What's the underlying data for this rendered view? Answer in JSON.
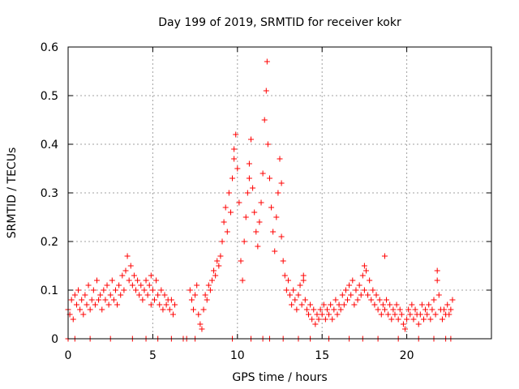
{
  "chart_data": {
    "type": "scatter",
    "title": "Day 199 of 2019, SRMTID for receiver kokr",
    "xlabel": "GPS time / hours",
    "ylabel": "SRMTID / TECUs",
    "xlim": [
      0,
      25
    ],
    "ylim": [
      0,
      0.6
    ],
    "xticks": [
      0,
      5,
      10,
      15,
      20
    ],
    "yticks": [
      0,
      0.1,
      0.2,
      0.3,
      0.4,
      0.5,
      0.6
    ],
    "xtick_labels": [
      "0",
      "5",
      "10",
      "15",
      "20"
    ],
    "ytick_labels": [
      "0",
      "0.1",
      "0.2",
      "0.3",
      "0.4",
      "0.5",
      "0.6"
    ],
    "grid": true,
    "marker": "+",
    "marker_color": "#ff0000",
    "series": [
      {
        "name": "SRMTID",
        "points": [
          [
            0.0,
            0.06
          ],
          [
            0.1,
            0.05
          ],
          [
            0.2,
            0.08
          ],
          [
            0.3,
            0.04
          ],
          [
            0.4,
            0.09
          ],
          [
            0.5,
            0.07
          ],
          [
            0.6,
            0.1
          ],
          [
            0.7,
            0.06
          ],
          [
            0.8,
            0.08
          ],
          [
            0.9,
            0.05
          ],
          [
            1.0,
            0.09
          ],
          [
            1.1,
            0.07
          ],
          [
            1.2,
            0.11
          ],
          [
            1.3,
            0.06
          ],
          [
            1.4,
            0.08
          ],
          [
            1.5,
            0.1
          ],
          [
            1.6,
            0.07
          ],
          [
            1.7,
            0.12
          ],
          [
            1.8,
            0.08
          ],
          [
            1.9,
            0.09
          ],
          [
            2.0,
            0.06
          ],
          [
            2.1,
            0.1
          ],
          [
            2.2,
            0.08
          ],
          [
            2.3,
            0.11
          ],
          [
            2.4,
            0.07
          ],
          [
            2.5,
            0.09
          ],
          [
            2.6,
            0.12
          ],
          [
            2.7,
            0.08
          ],
          [
            2.8,
            0.1
          ],
          [
            2.9,
            0.07
          ],
          [
            3.0,
            0.11
          ],
          [
            3.1,
            0.09
          ],
          [
            3.2,
            0.13
          ],
          [
            3.3,
            0.1
          ],
          [
            3.4,
            0.14
          ],
          [
            3.5,
            0.17
          ],
          [
            3.6,
            0.12
          ],
          [
            3.7,
            0.15
          ],
          [
            3.8,
            0.11
          ],
          [
            3.9,
            0.13
          ],
          [
            4.0,
            0.1
          ],
          [
            4.1,
            0.12
          ],
          [
            4.2,
            0.09
          ],
          [
            4.3,
            0.11
          ],
          [
            4.4,
            0.08
          ],
          [
            4.5,
            0.1
          ],
          [
            4.6,
            0.12
          ],
          [
            4.7,
            0.09
          ],
          [
            4.8,
            0.11
          ],
          [
            4.9,
            0.07
          ],
          [
            5.0,
            0.1
          ],
          [
            5.1,
            0.08
          ],
          [
            5.2,
            0.12
          ],
          [
            5.3,
            0.09
          ],
          [
            5.4,
            0.07
          ],
          [
            5.5,
            0.1
          ],
          [
            5.6,
            0.06
          ],
          [
            5.7,
            0.09
          ],
          [
            5.8,
            0.07
          ],
          [
            5.9,
            0.08
          ],
          [
            6.0,
            0.06
          ],
          [
            6.1,
            0.08
          ],
          [
            6.2,
            0.05
          ],
          [
            6.3,
            0.07
          ],
          [
            7.2,
            0.1
          ],
          [
            7.3,
            0.08
          ],
          [
            7.4,
            0.06
          ],
          [
            7.5,
            0.09
          ],
          [
            7.6,
            0.11
          ],
          [
            7.7,
            0.05
          ],
          [
            7.8,
            0.03
          ],
          [
            7.9,
            0.02
          ],
          [
            8.0,
            0.06
          ],
          [
            8.1,
            0.09
          ],
          [
            8.2,
            0.08
          ],
          [
            8.3,
            0.11
          ],
          [
            8.4,
            0.1
          ],
          [
            8.5,
            0.12
          ],
          [
            8.6,
            0.14
          ],
          [
            8.7,
            0.13
          ],
          [
            8.8,
            0.16
          ],
          [
            8.9,
            0.15
          ],
          [
            9.0,
            0.17
          ],
          [
            9.1,
            0.2
          ],
          [
            9.2,
            0.24
          ],
          [
            9.3,
            0.27
          ],
          [
            9.4,
            0.22
          ],
          [
            9.5,
            0.3
          ],
          [
            9.6,
            0.26
          ],
          [
            9.7,
            0.33
          ],
          [
            9.8,
            0.37
          ],
          [
            9.9,
            0.42
          ],
          [
            10.0,
            0.35
          ],
          [
            10.1,
            0.28
          ],
          [
            10.2,
            0.16
          ],
          [
            10.3,
            0.12
          ],
          [
            10.4,
            0.2
          ],
          [
            10.5,
            0.25
          ],
          [
            10.6,
            0.3
          ],
          [
            10.7,
            0.36
          ],
          [
            10.8,
            0.41
          ],
          [
            10.9,
            0.31
          ],
          [
            11.0,
            0.26
          ],
          [
            11.1,
            0.22
          ],
          [
            11.2,
            0.19
          ],
          [
            11.3,
            0.24
          ],
          [
            11.4,
            0.28
          ],
          [
            11.5,
            0.34
          ],
          [
            11.6,
            0.45
          ],
          [
            11.7,
            0.51
          ],
          [
            11.75,
            0.57
          ],
          [
            11.8,
            0.4
          ],
          [
            11.9,
            0.33
          ],
          [
            12.0,
            0.27
          ],
          [
            12.1,
            0.22
          ],
          [
            12.2,
            0.18
          ],
          [
            12.3,
            0.25
          ],
          [
            12.4,
            0.3
          ],
          [
            12.5,
            0.37
          ],
          [
            12.6,
            0.21
          ],
          [
            12.7,
            0.16
          ],
          [
            12.8,
            0.13
          ],
          [
            12.9,
            0.1
          ],
          [
            13.0,
            0.12
          ],
          [
            13.1,
            0.09
          ],
          [
            13.2,
            0.07
          ],
          [
            13.3,
            0.1
          ],
          [
            13.4,
            0.08
          ],
          [
            13.5,
            0.06
          ],
          [
            13.6,
            0.09
          ],
          [
            13.7,
            0.11
          ],
          [
            13.8,
            0.07
          ],
          [
            13.9,
            0.12
          ],
          [
            14.0,
            0.08
          ],
          [
            14.1,
            0.06
          ],
          [
            14.2,
            0.05
          ],
          [
            14.3,
            0.07
          ],
          [
            14.4,
            0.04
          ],
          [
            14.5,
            0.06
          ],
          [
            14.6,
            0.03
          ],
          [
            14.7,
            0.05
          ],
          [
            14.8,
            0.04
          ],
          [
            14.9,
            0.06
          ],
          [
            15.0,
            0.05
          ],
          [
            15.1,
            0.07
          ],
          [
            15.2,
            0.04
          ],
          [
            15.3,
            0.06
          ],
          [
            15.4,
            0.05
          ],
          [
            15.5,
            0.07
          ],
          [
            15.6,
            0.04
          ],
          [
            15.7,
            0.06
          ],
          [
            15.8,
            0.08
          ],
          [
            15.9,
            0.05
          ],
          [
            16.0,
            0.07
          ],
          [
            16.1,
            0.06
          ],
          [
            16.2,
            0.09
          ],
          [
            16.3,
            0.07
          ],
          [
            16.4,
            0.1
          ],
          [
            16.5,
            0.08
          ],
          [
            16.6,
            0.11
          ],
          [
            16.7,
            0.09
          ],
          [
            16.8,
            0.12
          ],
          [
            16.9,
            0.07
          ],
          [
            17.0,
            0.1
          ],
          [
            17.1,
            0.08
          ],
          [
            17.2,
            0.11
          ],
          [
            17.3,
            0.09
          ],
          [
            17.4,
            0.13
          ],
          [
            17.5,
            0.1
          ],
          [
            17.6,
            0.14
          ],
          [
            17.7,
            0.09
          ],
          [
            17.8,
            0.12
          ],
          [
            17.9,
            0.08
          ],
          [
            18.0,
            0.1
          ],
          [
            18.1,
            0.07
          ],
          [
            18.2,
            0.09
          ],
          [
            18.3,
            0.06
          ],
          [
            18.4,
            0.08
          ],
          [
            18.5,
            0.05
          ],
          [
            18.6,
            0.07
          ],
          [
            18.7,
            0.06
          ],
          [
            18.8,
            0.08
          ],
          [
            18.9,
            0.05
          ],
          [
            19.0,
            0.07
          ],
          [
            19.1,
            0.04
          ],
          [
            19.2,
            0.06
          ],
          [
            19.3,
            0.05
          ],
          [
            19.4,
            0.07
          ],
          [
            19.5,
            0.04
          ],
          [
            19.6,
            0.06
          ],
          [
            19.7,
            0.05
          ],
          [
            19.8,
            0.03
          ],
          [
            19.9,
            0.02
          ],
          [
            20.0,
            0.04
          ],
          [
            20.1,
            0.06
          ],
          [
            20.2,
            0.05
          ],
          [
            20.3,
            0.07
          ],
          [
            20.4,
            0.04
          ],
          [
            20.5,
            0.06
          ],
          [
            20.6,
            0.05
          ],
          [
            20.7,
            0.03
          ],
          [
            20.8,
            0.05
          ],
          [
            20.9,
            0.07
          ],
          [
            21.0,
            0.04
          ],
          [
            21.1,
            0.06
          ],
          [
            21.2,
            0.05
          ],
          [
            21.3,
            0.07
          ],
          [
            21.4,
            0.04
          ],
          [
            21.5,
            0.06
          ],
          [
            21.6,
            0.08
          ],
          [
            21.7,
            0.05
          ],
          [
            21.8,
            0.12
          ],
          [
            21.9,
            0.09
          ],
          [
            22.0,
            0.06
          ],
          [
            22.1,
            0.04
          ],
          [
            22.2,
            0.06
          ],
          [
            22.3,
            0.05
          ],
          [
            22.4,
            0.07
          ],
          [
            22.5,
            0.05
          ],
          [
            22.6,
            0.06
          ],
          [
            22.7,
            0.08
          ],
          [
            18.7,
            0.17
          ],
          [
            13.9,
            0.13
          ],
          [
            4.9,
            0.13
          ],
          [
            17.5,
            0.15
          ],
          [
            21.8,
            0.14
          ],
          [
            12.6,
            0.32
          ],
          [
            9.8,
            0.39
          ],
          [
            10.7,
            0.33
          ]
        ]
      }
    ],
    "zero_points_x": [
      0.0,
      0.4,
      1.3,
      2.5,
      3.8,
      4.6,
      5.3,
      6.1,
      6.8,
      7.0,
      7.5,
      9.7,
      10.8,
      11.5,
      11.9,
      12.7,
      13.6,
      14.3,
      15.4,
      16.6,
      17.4,
      18.3,
      19.5,
      20.7,
      21.6,
      22.3,
      22.6
    ]
  }
}
